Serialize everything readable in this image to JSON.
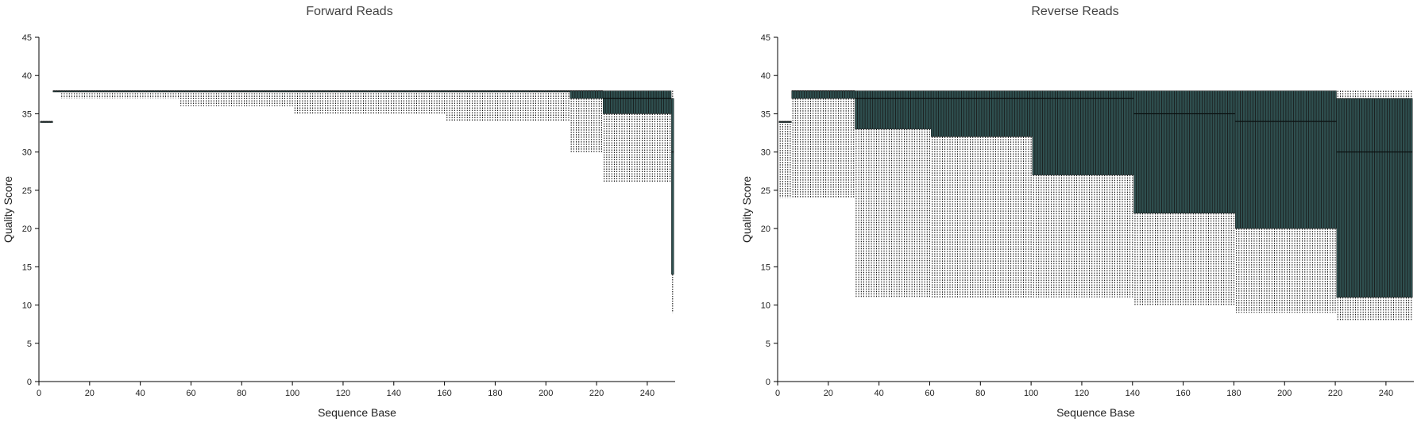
{
  "chart_data": [
    {
      "type": "box",
      "title": "Forward Reads",
      "xlabel": "Sequence Base",
      "ylabel": "Quality Score",
      "xlim": [
        0,
        251
      ],
      "ylim": [
        0,
        45
      ],
      "xticks": [
        0,
        20,
        40,
        60,
        80,
        100,
        120,
        140,
        160,
        180,
        200,
        220,
        240
      ],
      "yticks": [
        0,
        5,
        10,
        15,
        20,
        25,
        30,
        35,
        40,
        45
      ],
      "grid": false,
      "box_color": "#2f4f4f",
      "series": [
        {
          "x": [
            1,
            2,
            3,
            4,
            5
          ],
          "whisker_low": 34,
          "q1": 34,
          "median": 34,
          "q3": 34,
          "whisker_high": 34
        },
        {
          "x_range": [
            6,
            8
          ],
          "whisker_low": 38,
          "q1": 38,
          "median": 38,
          "q3": 38,
          "whisker_high": 38
        },
        {
          "x_range": [
            9,
            55
          ],
          "whisker_low": 37,
          "q1": 38,
          "median": 38,
          "q3": 38,
          "whisker_high": 38
        },
        {
          "x_range": [
            56,
            100
          ],
          "whisker_low": 36,
          "q1": 38,
          "median": 38,
          "q3": 38,
          "whisker_high": 38
        },
        {
          "x_range": [
            101,
            160
          ],
          "whisker_low": 35,
          "q1": 38,
          "median": 38,
          "q3": 38,
          "whisker_high": 38
        },
        {
          "x_range": [
            161,
            209
          ],
          "whisker_low": 34,
          "q1": 38,
          "median": 38,
          "q3": 38,
          "whisker_high": 38
        },
        {
          "x_range": [
            210,
            222
          ],
          "whisker_low": 30,
          "q1": 37,
          "median": 38,
          "q3": 38,
          "whisker_high": 38
        },
        {
          "x_range": [
            223,
            249
          ],
          "whisker_low": 26,
          "q1": 35,
          "median": 37,
          "q3": 38,
          "whisker_high": 38
        },
        {
          "x": [
            250
          ],
          "whisker_low": 9,
          "q1": 14,
          "median": 30,
          "q3": 37,
          "whisker_high": 38
        }
      ]
    },
    {
      "type": "box",
      "title": "Reverse Reads",
      "xlabel": "Sequence Base",
      "ylabel": "Quality Score",
      "xlim": [
        0,
        251
      ],
      "ylim": [
        0,
        45
      ],
      "xticks": [
        0,
        20,
        40,
        60,
        80,
        100,
        120,
        140,
        160,
        180,
        200,
        220,
        240
      ],
      "yticks": [
        0,
        5,
        10,
        15,
        20,
        25,
        30,
        35,
        40,
        45
      ],
      "grid": false,
      "box_color": "#2f4f4f",
      "series": [
        {
          "x_range": [
            1,
            5
          ],
          "whisker_low": 24,
          "q1": 34,
          "median": 34,
          "q3": 34,
          "whisker_high": 34
        },
        {
          "x_range": [
            6,
            30
          ],
          "whisker_low": 24,
          "q1": 37,
          "median": 38,
          "q3": 38,
          "whisker_high": 38
        },
        {
          "x_range": [
            31,
            60
          ],
          "whisker_low": 11,
          "q1": 33,
          "median": 37,
          "q3": 38,
          "whisker_high": 38
        },
        {
          "x_range": [
            61,
            100
          ],
          "whisker_low": 11,
          "q1": 32,
          "median": 37,
          "q3": 38,
          "whisker_high": 38
        },
        {
          "x_range": [
            101,
            140
          ],
          "whisker_low": 11,
          "q1": 27,
          "median": 37,
          "q3": 38,
          "whisker_high": 38
        },
        {
          "x_range": [
            141,
            180
          ],
          "whisker_low": 10,
          "q1": 22,
          "median": 35,
          "q3": 38,
          "whisker_high": 38
        },
        {
          "x_range": [
            181,
            220
          ],
          "whisker_low": 9,
          "q1": 20,
          "median": 34,
          "q3": 38,
          "whisker_high": 38
        },
        {
          "x_range": [
            221,
            250
          ],
          "whisker_low": 8,
          "q1": 11,
          "median": 30,
          "q3": 37,
          "whisker_high": 38
        }
      ]
    }
  ]
}
